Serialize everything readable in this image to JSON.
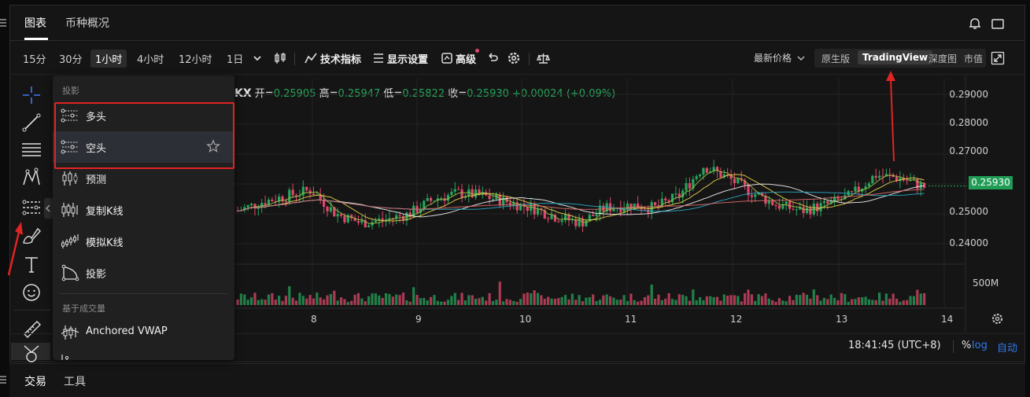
{
  "top_tabs": [
    {
      "label": "图表",
      "active": true
    },
    {
      "label": "币种概况",
      "active": false
    }
  ],
  "toolbar": {
    "intervals": [
      {
        "label": "15分",
        "selected": false
      },
      {
        "label": "30分",
        "selected": false
      },
      {
        "label": "1小时",
        "selected": true
      },
      {
        "label": "4小时",
        "selected": false
      },
      {
        "label": "12小时",
        "selected": false
      },
      {
        "label": "1日",
        "selected": false
      }
    ],
    "indicators_label": "技术指标",
    "display_settings_label": "显示设置",
    "advanced_label": "高级",
    "price_mode_label": "最新价格",
    "views": [
      {
        "label": "原生版",
        "selected": false
      },
      {
        "label": "TradingView",
        "selected": true
      },
      {
        "label": "深度图",
        "selected": false
      },
      {
        "label": "市值",
        "selected": false
      }
    ]
  },
  "ohlc": {
    "symbol_tail": "KX",
    "open_label": "开=",
    "open": "0.25905",
    "high_label": "高=",
    "high": "0.25947",
    "low_label": "低=",
    "low": "0.25822",
    "close_label": "收=",
    "close": "0.25930",
    "change": "+0.00024 (+0.09%)"
  },
  "colors": {
    "up": "#26a65b",
    "down": "#e0476b",
    "accent_blue": "#2f7bf0",
    "annotation_red": "#e02424"
  },
  "chart_data": {
    "type": "candlestick",
    "price_ticks": [
      "0.29000",
      "0.28000",
      "0.27000",
      "0.26000",
      "0.25000",
      "0.24000"
    ],
    "last_price": "0.25930",
    "volume_tick": "500M",
    "x_ticks": [
      "8",
      "9",
      "10",
      "11",
      "12",
      "13",
      "14"
    ],
    "approx_close_path": [
      0.251,
      0.254,
      0.256,
      0.258,
      0.25,
      0.247,
      0.248,
      0.25,
      0.255,
      0.257,
      0.256,
      0.254,
      0.252,
      0.249,
      0.247,
      0.252,
      0.253,
      0.252,
      0.256,
      0.266,
      0.262,
      0.257,
      0.253,
      0.251,
      0.253,
      0.256,
      0.263,
      0.262,
      0.259
    ],
    "grid": true
  },
  "status": {
    "time": "18:41:45 (UTC+8)",
    "percent": "%",
    "log": "log",
    "auto": "自动"
  },
  "bottom_tabs": [
    {
      "label": "交易",
      "active": true
    },
    {
      "label": "工具",
      "active": false
    }
  ],
  "menu": {
    "section1": "投影",
    "items1": [
      {
        "label": "多头",
        "icon": "long-position-icon"
      },
      {
        "label": "空头",
        "icon": "short-position-icon"
      },
      {
        "label": "预测",
        "icon": "forecast-icon"
      },
      {
        "label": "复制K线",
        "icon": "bars-pattern-icon"
      },
      {
        "label": "模拟K线",
        "icon": "ghost-feed-icon"
      },
      {
        "label": "投影",
        "icon": "projection-icon"
      }
    ],
    "section2": "基于成交量",
    "items2": [
      {
        "label": "Anchored VWAP",
        "icon": "anchored-vwap-icon"
      }
    ]
  }
}
